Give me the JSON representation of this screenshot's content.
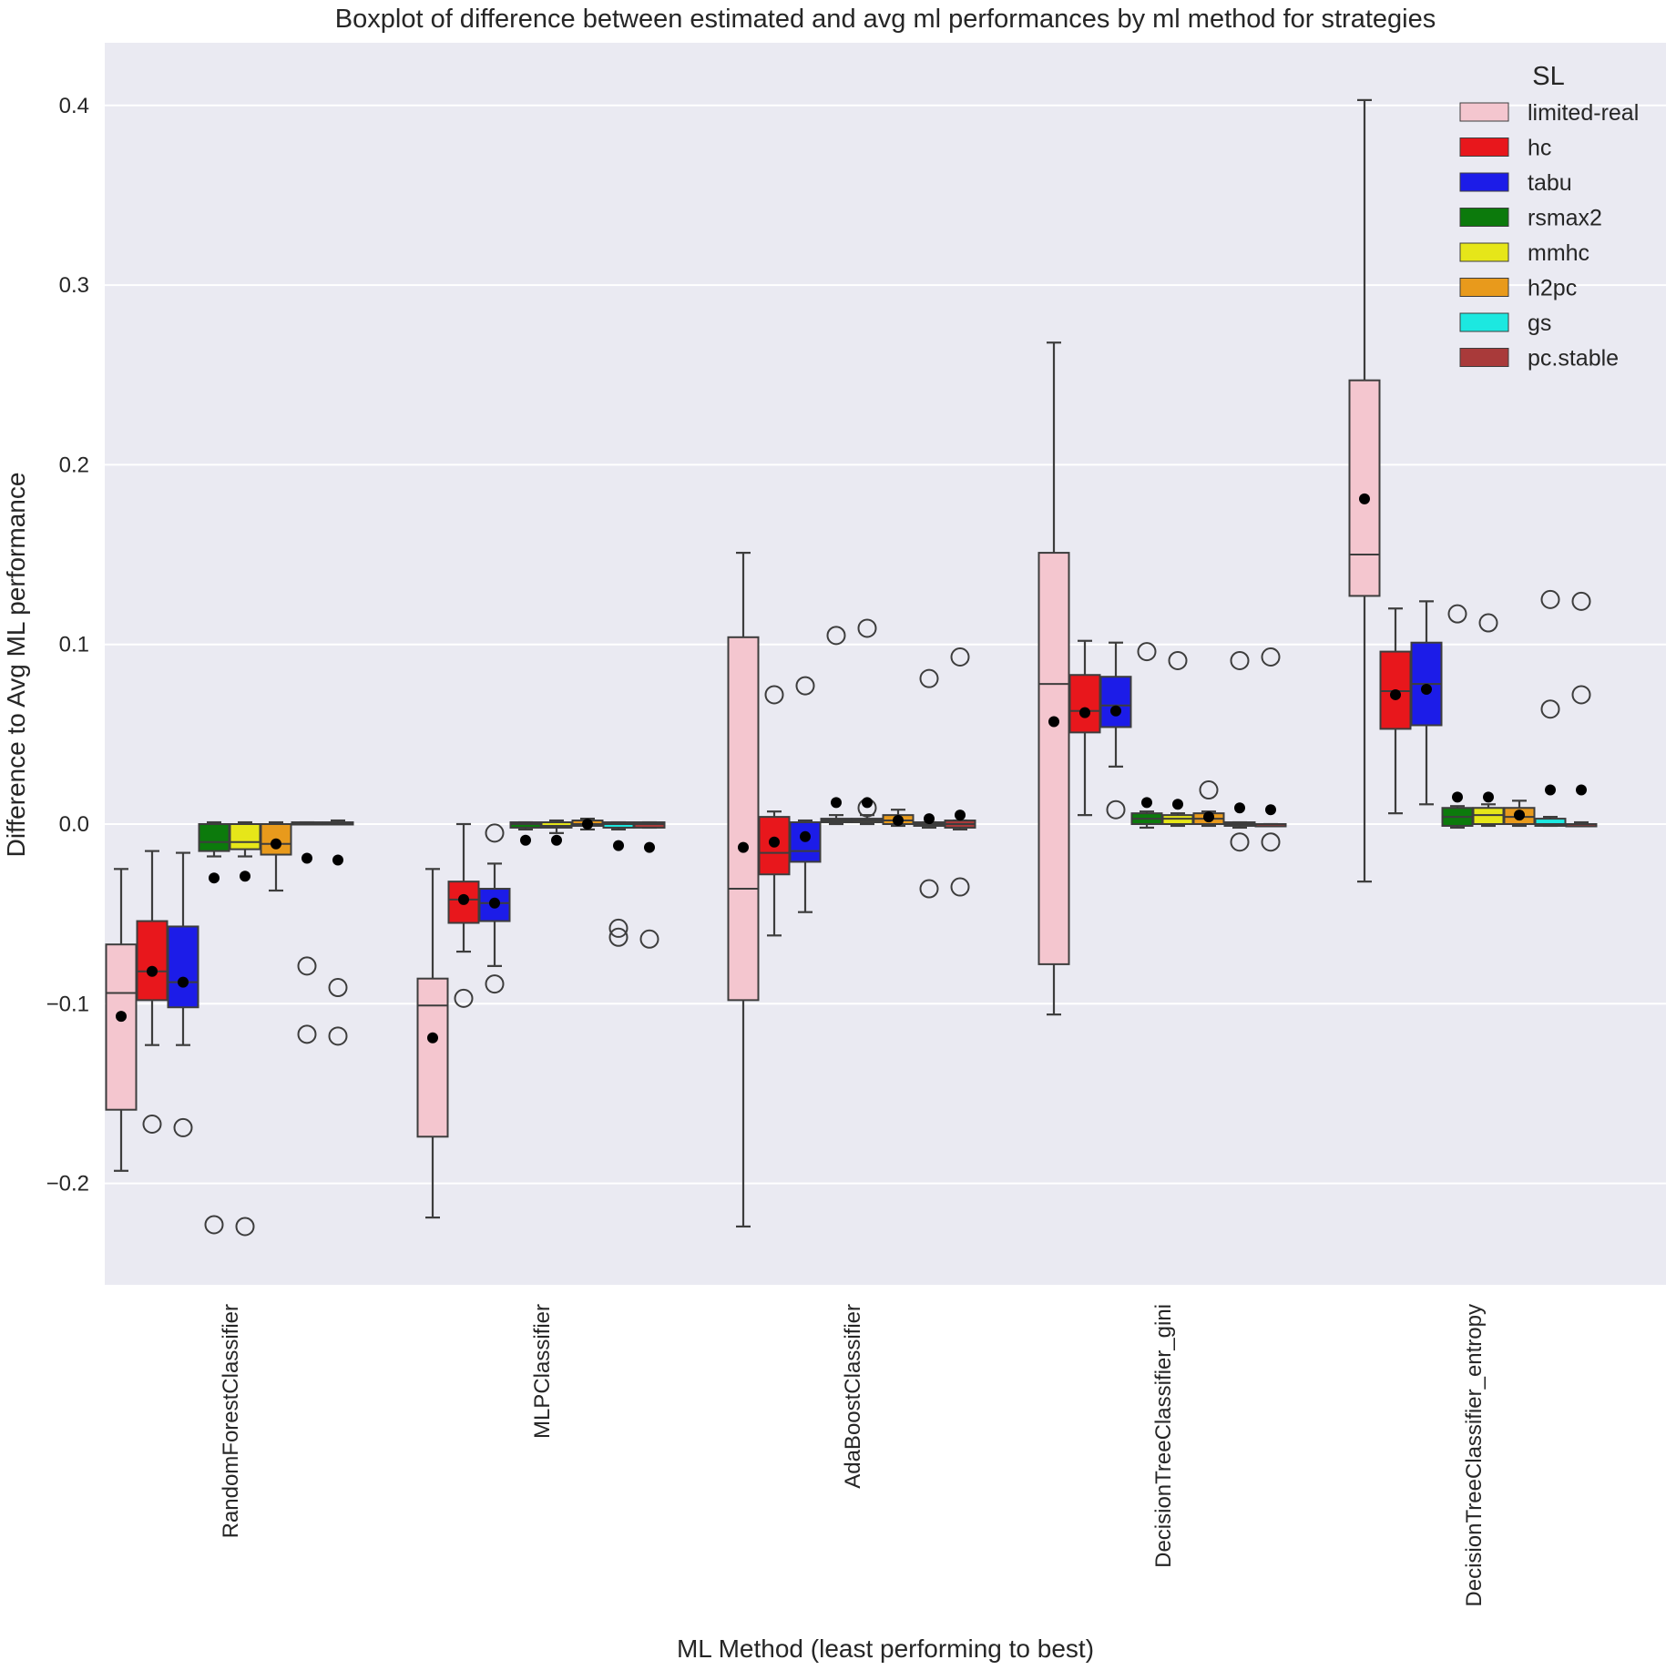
{
  "chart_data": {
    "type": "boxplot",
    "title": "Boxplot of difference between estimated and avg ml performances by ml method for strategies",
    "xlabel": "ML Method (least performing to best)",
    "ylabel": "Difference to Avg ML performance",
    "ylim": [
      -0.255,
      0.435
    ],
    "yticks": [
      {
        "value": -0.2,
        "label": "−0.2"
      },
      {
        "value": -0.1,
        "label": "−0.1"
      },
      {
        "value": 0.0,
        "label": "0.0"
      },
      {
        "value": 0.1,
        "label": "0.1"
      },
      {
        "value": 0.2,
        "label": "0.2"
      },
      {
        "value": 0.3,
        "label": "0.3"
      },
      {
        "value": 0.4,
        "label": "0.4"
      }
    ],
    "grid": true,
    "legend": {
      "title": "SL",
      "placement": "top-right"
    },
    "categories": [
      "RandomForestClassifier",
      "MLPClassifier",
      "AdaBoostClassifier",
      "DecisionTreeClassifier_gini",
      "DecisionTreeClassifier_entropy"
    ],
    "series": [
      {
        "name": "limited-real",
        "color": "#f4c6cf",
        "boxes": [
          {
            "q1": -0.159,
            "median": -0.094,
            "q3": -0.067,
            "whislo": -0.193,
            "whishi": -0.025,
            "mean": -0.107,
            "fliers": []
          },
          {
            "q1": -0.174,
            "median": -0.101,
            "q3": -0.086,
            "whislo": -0.219,
            "whishi": -0.025,
            "mean": -0.119,
            "fliers": []
          },
          {
            "q1": -0.098,
            "median": -0.036,
            "q3": 0.104,
            "whislo": -0.224,
            "whishi": 0.151,
            "mean": -0.013,
            "fliers": []
          },
          {
            "q1": -0.078,
            "median": 0.078,
            "q3": 0.151,
            "whislo": -0.106,
            "whishi": 0.268,
            "mean": 0.057,
            "fliers": []
          },
          {
            "q1": 0.127,
            "median": 0.15,
            "q3": 0.247,
            "whislo": -0.032,
            "whishi": 0.403,
            "mean": 0.181,
            "fliers": []
          }
        ]
      },
      {
        "name": "hc",
        "color": "#e8171c",
        "boxes": [
          {
            "q1": -0.098,
            "median": -0.082,
            "q3": -0.054,
            "whislo": -0.123,
            "whishi": -0.015,
            "mean": -0.082,
            "fliers": [
              -0.167
            ]
          },
          {
            "q1": -0.055,
            "median": -0.042,
            "q3": -0.032,
            "whislo": -0.071,
            "whishi": 0.0,
            "mean": -0.042,
            "fliers": [
              -0.097
            ]
          },
          {
            "q1": -0.028,
            "median": -0.016,
            "q3": 0.004,
            "whislo": -0.062,
            "whishi": 0.007,
            "mean": -0.01,
            "fliers": [
              0.072
            ]
          },
          {
            "q1": 0.051,
            "median": 0.063,
            "q3": 0.083,
            "whislo": 0.005,
            "whishi": 0.102,
            "mean": 0.062,
            "fliers": []
          },
          {
            "q1": 0.053,
            "median": 0.074,
            "q3": 0.096,
            "whislo": 0.006,
            "whishi": 0.12,
            "mean": 0.072,
            "fliers": []
          }
        ]
      },
      {
        "name": "tabu",
        "color": "#1c1ce8",
        "boxes": [
          {
            "q1": -0.102,
            "median": -0.088,
            "q3": -0.057,
            "whislo": -0.123,
            "whishi": -0.016,
            "mean": -0.088,
            "fliers": [
              -0.169
            ]
          },
          {
            "q1": -0.054,
            "median": -0.044,
            "q3": -0.036,
            "whislo": -0.079,
            "whishi": -0.022,
            "mean": -0.044,
            "fliers": [
              -0.005,
              -0.089
            ]
          },
          {
            "q1": -0.021,
            "median": -0.015,
            "q3": 0.001,
            "whislo": -0.049,
            "whishi": 0.002,
            "mean": -0.007,
            "fliers": [
              0.077
            ]
          },
          {
            "q1": 0.054,
            "median": 0.066,
            "q3": 0.082,
            "whislo": 0.032,
            "whishi": 0.101,
            "mean": 0.063,
            "fliers": [
              0.008
            ]
          },
          {
            "q1": 0.055,
            "median": 0.078,
            "q3": 0.101,
            "whislo": 0.011,
            "whishi": 0.124,
            "mean": 0.075,
            "fliers": []
          }
        ]
      },
      {
        "name": "rsmax2",
        "color": "#0c7a0c",
        "boxes": [
          {
            "q1": -0.015,
            "median": -0.01,
            "q3": 0.0,
            "whislo": -0.018,
            "whishi": 0.001,
            "mean": -0.03,
            "fliers": [
              -0.223
            ]
          },
          {
            "q1": -0.002,
            "median": 0.0,
            "q3": 0.001,
            "whislo": -0.003,
            "whishi": 0.001,
            "mean": -0.009,
            "fliers": []
          },
          {
            "q1": 0.001,
            "median": 0.002,
            "q3": 0.003,
            "whislo": 0.0,
            "whishi": 0.005,
            "mean": 0.012,
            "fliers": [
              0.105
            ]
          },
          {
            "q1": 0.0,
            "median": 0.003,
            "q3": 0.006,
            "whislo": -0.002,
            "whishi": 0.007,
            "mean": 0.012,
            "fliers": [
              0.096
            ]
          },
          {
            "q1": -0.001,
            "median": 0.004,
            "q3": 0.009,
            "whislo": -0.002,
            "whishi": 0.01,
            "mean": 0.015,
            "fliers": [
              0.117
            ]
          }
        ]
      },
      {
        "name": "mmhc",
        "color": "#e6e619",
        "boxes": [
          {
            "q1": -0.014,
            "median": -0.01,
            "q3": 0.0,
            "whislo": -0.018,
            "whishi": 0.001,
            "mean": -0.029,
            "fliers": [
              -0.224
            ]
          },
          {
            "q1": -0.002,
            "median": -0.001,
            "q3": 0.001,
            "whislo": -0.005,
            "whishi": 0.002,
            "mean": -0.009,
            "fliers": []
          },
          {
            "q1": 0.001,
            "median": 0.002,
            "q3": 0.003,
            "whislo": 0.0,
            "whishi": 0.005,
            "mean": 0.012,
            "fliers": [
              0.109,
              0.009
            ]
          },
          {
            "q1": 0.0,
            "median": 0.003,
            "q3": 0.005,
            "whislo": -0.001,
            "whishi": 0.006,
            "mean": 0.011,
            "fliers": [
              0.091
            ]
          },
          {
            "q1": 0.0,
            "median": 0.005,
            "q3": 0.009,
            "whislo": -0.001,
            "whishi": 0.011,
            "mean": 0.015,
            "fliers": [
              0.112
            ]
          }
        ]
      },
      {
        "name": "h2pc",
        "color": "#e89a1c",
        "boxes": [
          {
            "q1": -0.017,
            "median": -0.011,
            "q3": 0.0,
            "whislo": -0.037,
            "whishi": 0.001,
            "mean": -0.011,
            "fliers": []
          },
          {
            "q1": -0.001,
            "median": 0.0,
            "q3": 0.002,
            "whislo": -0.003,
            "whishi": 0.003,
            "mean": 0.0,
            "fliers": []
          },
          {
            "q1": 0.0,
            "median": 0.002,
            "q3": 0.005,
            "whislo": -0.001,
            "whishi": 0.008,
            "mean": 0.002,
            "fliers": []
          },
          {
            "q1": 0.0,
            "median": 0.003,
            "q3": 0.006,
            "whislo": -0.001,
            "whishi": 0.007,
            "mean": 0.004,
            "fliers": [
              0.019
            ]
          },
          {
            "q1": 0.0,
            "median": 0.004,
            "q3": 0.009,
            "whislo": -0.001,
            "whishi": 0.013,
            "mean": 0.005,
            "fliers": []
          }
        ]
      },
      {
        "name": "gs",
        "color": "#1ce8e0",
        "boxes": [
          {
            "q1": 0.0,
            "median": 0.0,
            "q3": 0.001,
            "whislo": 0.0,
            "whishi": 0.001,
            "mean": -0.019,
            "fliers": [
              -0.079,
              -0.117
            ]
          },
          {
            "q1": -0.002,
            "median": 0.0,
            "q3": 0.001,
            "whislo": -0.003,
            "whishi": 0.001,
            "mean": -0.012,
            "fliers": [
              -0.058,
              -0.063
            ]
          },
          {
            "q1": -0.001,
            "median": 0.0,
            "q3": 0.001,
            "whislo": -0.002,
            "whishi": 0.001,
            "mean": 0.003,
            "fliers": [
              0.081,
              -0.036
            ]
          },
          {
            "q1": -0.001,
            "median": 0.0,
            "q3": 0.001,
            "whislo": -0.002,
            "whishi": 0.001,
            "mean": 0.009,
            "fliers": [
              0.091,
              -0.01
            ]
          },
          {
            "q1": -0.001,
            "median": 0.0,
            "q3": 0.003,
            "whislo": -0.001,
            "whishi": 0.004,
            "mean": 0.019,
            "fliers": [
              0.125,
              0.064
            ]
          }
        ]
      },
      {
        "name": "pc.stable",
        "color": "#a93a3a",
        "boxes": [
          {
            "q1": 0.0,
            "median": 0.0,
            "q3": 0.001,
            "whislo": 0.0,
            "whishi": 0.002,
            "mean": -0.02,
            "fliers": [
              -0.091,
              -0.118
            ]
          },
          {
            "q1": -0.002,
            "median": 0.0,
            "q3": 0.001,
            "whislo": -0.002,
            "whishi": 0.001,
            "mean": -0.013,
            "fliers": [
              -0.064
            ]
          },
          {
            "q1": -0.002,
            "median": 0.0,
            "q3": 0.002,
            "whislo": -0.003,
            "whishi": 0.002,
            "mean": 0.005,
            "fliers": [
              0.093,
              -0.035
            ]
          },
          {
            "q1": -0.001,
            "median": 0.0,
            "q3": 0.0,
            "whislo": -0.001,
            "whishi": 0.0,
            "mean": 0.008,
            "fliers": [
              0.093,
              -0.01
            ]
          },
          {
            "q1": -0.001,
            "median": 0.0,
            "q3": 0.0,
            "whislo": -0.001,
            "whishi": 0.001,
            "mean": 0.019,
            "fliers": [
              0.124,
              0.072
            ]
          }
        ]
      }
    ]
  }
}
